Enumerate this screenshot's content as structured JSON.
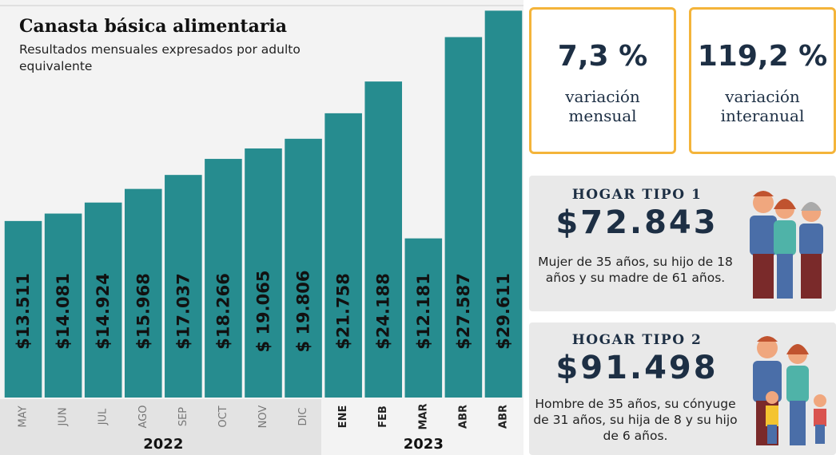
{
  "chart_data": {
    "type": "bar",
    "title": "Canasta básica alimentaria",
    "subtitle": "Resultados mensuales expresados por adulto equivalente",
    "color": "#268c8f",
    "ylim": [
      0,
      30000
    ],
    "groups": [
      {
        "label": "2022",
        "categories": [
          "MAY",
          "JUN",
          "JUL",
          "AGO",
          "SEP",
          "OCT",
          "NOV",
          "DIC"
        ],
        "values": [
          13511,
          14081,
          14924,
          15968,
          17037,
          18266,
          19065,
          19806
        ],
        "value_labels": [
          "$13.511",
          "$14.081",
          "$14.924",
          "$15.968",
          "$17.037",
          "$18.266",
          "$ 19.065",
          "$ 19.806"
        ]
      },
      {
        "label": "2023",
        "categories": [
          "ENE",
          "FEB",
          "MAR",
          "ABR",
          "ABR"
        ],
        "values": [
          21758,
          24188,
          12181,
          27587,
          29611
        ],
        "value_labels": [
          "$21.758",
          "$24.188",
          "$12.181",
          "$27.587",
          "$29.611"
        ]
      }
    ]
  },
  "kpis": [
    {
      "value": "7,3 %",
      "label": "variación mensual"
    },
    {
      "value": "119,2 %",
      "label": "variación interanual"
    }
  ],
  "households": [
    {
      "title": "HOGAR TIPO 1",
      "amount": "$72.843",
      "description": "Mujer de 35 años, su hijo de 18 años y su madre de 61 años."
    },
    {
      "title": "HOGAR TIPO 2",
      "amount": "$91.498",
      "description": "Hombre de 35 años, su cónyuge de 31 años, su hija de 8 y su hijo de 6 años."
    }
  ]
}
